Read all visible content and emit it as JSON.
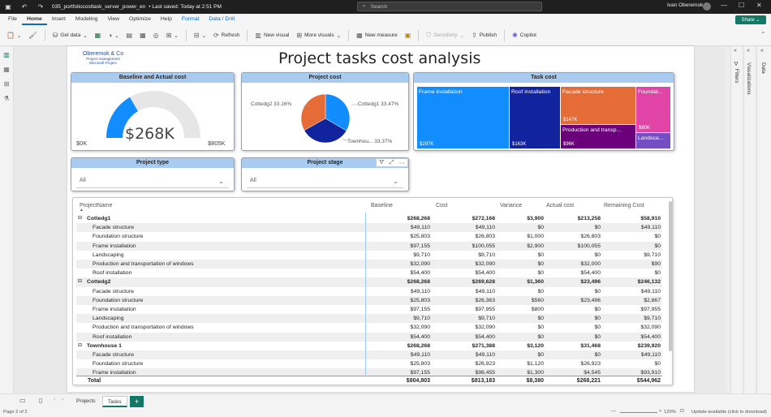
{
  "titlebar": {
    "file_name": "035_portfoliocosttask_server_power_en",
    "save_status": "• Last saved: Today at 2:51 PM",
    "search_placeholder": "Search",
    "user_name": "Ivan Oberemok"
  },
  "ribbon": {
    "tabs": [
      "File",
      "Home",
      "Insert",
      "Modeling",
      "View",
      "Optimize",
      "Help",
      "Format",
      "Data / Drill"
    ],
    "active_tab": "Home",
    "share_label": "Share",
    "buttons": {
      "get_data": "Get data",
      "refresh": "Refresh",
      "new_visual": "New visual",
      "more_visuals": "More visuals",
      "new_measure": "New measure",
      "sensitivity": "Sensitivity",
      "publish": "Publish",
      "copilot": "Copilot"
    }
  },
  "report": {
    "logo": {
      "name": "Oberemok & Co",
      "line2": "Project management",
      "line3": "Microsoft Project"
    },
    "title": "Project tasks cost analysis"
  },
  "gauge": {
    "title": "Baseline and Actual cost",
    "value_label": "$268K",
    "min_label": "$0K",
    "max_label": "$805K",
    "value": 268,
    "min": 0,
    "max": 805,
    "fill_color": "#118dff",
    "track_color": "#e6e6e6"
  },
  "pie": {
    "title": "Project cost",
    "slices": [
      {
        "name": "Cottedg1",
        "label": "Cottedg1 33.47%",
        "percent": 33.47,
        "color": "#118dff"
      },
      {
        "name": "Townhouse 1",
        "label": "Townhou... 33.37%",
        "percent": 33.37,
        "color": "#12239e"
      },
      {
        "name": "Cottedg2",
        "label": "Cottedg2 33.16%",
        "percent": 33.16,
        "color": "#e66c37"
      }
    ]
  },
  "treemap": {
    "title": "Task cost",
    "tiles": [
      {
        "name": "Frame installation",
        "value_label": "$297K",
        "color": "#118dff"
      },
      {
        "name": "Roof installation",
        "value_label": "$163K",
        "color": "#12239e"
      },
      {
        "name": "Facade structure",
        "value_label": "$147K",
        "color": "#e66c37"
      },
      {
        "name": "Production and transp...",
        "value_label": "$96K",
        "color": "#6b007b"
      },
      {
        "name": "Foundat...",
        "value_label": "$80K",
        "color": "#e044a7"
      },
      {
        "name": "Landsca...",
        "value_label": "",
        "color": "#744ec2"
      }
    ]
  },
  "slicers": {
    "project_type": {
      "title": "Project type",
      "value": "All"
    },
    "project_stage": {
      "title": "Project stage",
      "value": "All"
    }
  },
  "matrix": {
    "columns": [
      "ProjectName",
      "Baseline",
      "Cost",
      "Variance",
      "Actual cost",
      "Remaining Cost"
    ],
    "rows": [
      {
        "name": "Cottedg1",
        "group": true,
        "values": [
          "$268,268",
          "$272,168",
          "$3,900",
          "$213,258",
          "$58,910"
        ]
      },
      {
        "name": "Facade structure",
        "values": [
          "$49,110",
          "$49,110",
          "$0",
          "$0",
          "$49,110"
        ]
      },
      {
        "name": "Foundation structure",
        "values": [
          "$25,803",
          "$26,803",
          "$1,000",
          "$26,803",
          "$0"
        ]
      },
      {
        "name": "Frame installation",
        "values": [
          "$97,155",
          "$100,055",
          "$2,900",
          "$100,055",
          "$0"
        ]
      },
      {
        "name": "Landscaping",
        "values": [
          "$9,710",
          "$9,710",
          "$0",
          "$0",
          "$9,710"
        ]
      },
      {
        "name": "Production and transportation of windows",
        "values": [
          "$32,090",
          "$32,090",
          "$0",
          "$32,000",
          "$90"
        ]
      },
      {
        "name": "Roof installation",
        "values": [
          "$54,400",
          "$54,400",
          "$0",
          "$54,400",
          "$0"
        ]
      },
      {
        "name": "Cottedg2",
        "group": true,
        "values": [
          "$268,268",
          "$269,628",
          "$1,360",
          "$23,496",
          "$246,132"
        ]
      },
      {
        "name": "Facade structure",
        "values": [
          "$49,110",
          "$49,110",
          "$0",
          "$0",
          "$49,110"
        ]
      },
      {
        "name": "Foundation structure",
        "values": [
          "$25,803",
          "$26,363",
          "$560",
          "$23,496",
          "$2,867"
        ]
      },
      {
        "name": "Frame installation",
        "values": [
          "$97,155",
          "$97,955",
          "$800",
          "$0",
          "$97,955"
        ]
      },
      {
        "name": "Landscaping",
        "values": [
          "$9,710",
          "$9,710",
          "$0",
          "$0",
          "$9,710"
        ]
      },
      {
        "name": "Production and transportation of windows",
        "values": [
          "$32,090",
          "$32,090",
          "$0",
          "$0",
          "$32,090"
        ]
      },
      {
        "name": "Roof installation",
        "values": [
          "$54,400",
          "$54,400",
          "$0",
          "$0",
          "$54,400"
        ]
      },
      {
        "name": "Townhouse 1",
        "group": true,
        "values": [
          "$268,268",
          "$271,388",
          "$3,120",
          "$31,468",
          "$239,920"
        ]
      },
      {
        "name": "Facade structure",
        "values": [
          "$49,110",
          "$49,110",
          "$0",
          "$0",
          "$49,110"
        ]
      },
      {
        "name": "Foundation structure",
        "values": [
          "$25,803",
          "$26,923",
          "$1,120",
          "$26,923",
          "$0"
        ]
      },
      {
        "name": "Frame installation",
        "values": [
          "$97,155",
          "$98,455",
          "$1,300",
          "$4,545",
          "$93,910"
        ]
      }
    ],
    "total": {
      "name": "Total",
      "values": [
        "$804,803",
        "$813,183",
        "$8,380",
        "$268,221",
        "$544,962"
      ]
    }
  },
  "side_panes": {
    "filters": "Filters",
    "visualizations": "Visualizations",
    "data": "Data"
  },
  "page_tabs": [
    "Projects",
    "Tasks"
  ],
  "active_page": "Tasks",
  "status": {
    "page": "Page 2 of 2",
    "zoom": "120%",
    "update": "Update available (click to download)"
  }
}
